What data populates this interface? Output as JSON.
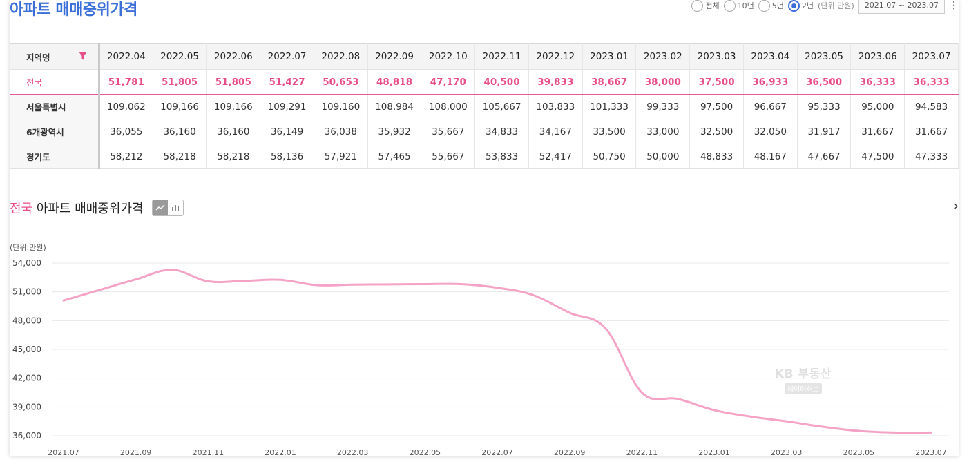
{
  "header": {
    "title": "아파트 매매중위가격",
    "radios": [
      {
        "label": "전체",
        "checked": false
      },
      {
        "label": "10년",
        "checked": false
      },
      {
        "label": "5년",
        "checked": false
      },
      {
        "label": "2년",
        "checked": true
      }
    ],
    "unit_note": "(단위:만원)",
    "date_range": "2021.07 ~ 2023.07"
  },
  "table": {
    "region_header": "지역명",
    "months": [
      "2022.04",
      "2022.05",
      "2022.06",
      "2022.07",
      "2022.08",
      "2022.09",
      "2022.10",
      "2022.11",
      "2022.12",
      "2023.01",
      "2023.02",
      "2023.03",
      "2023.04",
      "2023.05",
      "2023.06",
      "2023.07"
    ],
    "rows": [
      {
        "region": "전국",
        "values": [
          "51,781",
          "51,805",
          "51,805",
          "51,427",
          "50,653",
          "48,818",
          "47,170",
          "40,500",
          "39,833",
          "38,667",
          "38,000",
          "37,500",
          "36,933",
          "36,500",
          "36,333",
          "36,333"
        ]
      },
      {
        "region": "서울특별시",
        "values": [
          "109,062",
          "109,166",
          "109,166",
          "109,291",
          "109,160",
          "108,984",
          "108,000",
          "105,667",
          "103,833",
          "101,333",
          "99,333",
          "97,500",
          "96,667",
          "95,333",
          "95,000",
          "94,583"
        ]
      },
      {
        "region": "6개광역시",
        "values": [
          "36,055",
          "36,160",
          "36,160",
          "36,149",
          "36,038",
          "35,932",
          "35,667",
          "34,833",
          "34,167",
          "33,500",
          "33,000",
          "32,500",
          "32,050",
          "31,917",
          "31,667",
          "31,667"
        ]
      },
      {
        "region": "경기도",
        "values": [
          "58,212",
          "58,218",
          "58,218",
          "58,136",
          "57,921",
          "57,465",
          "55,667",
          "53,833",
          "52,417",
          "50,750",
          "50,000",
          "48,833",
          "48,167",
          "47,667",
          "47,500",
          "47,333"
        ]
      }
    ]
  },
  "chart_section": {
    "title_accent": "전국",
    "title_rest": " 아파트 매매중위가격",
    "unit_label": "(단위:만원)",
    "watermark_main": "KB 부동산",
    "watermark_sub": "데이터허브",
    "line_color": "#f4a3c6"
  },
  "chart_data": {
    "type": "line",
    "title": "전국 아파트 매매중위가격",
    "ylabel": "(단위:만원)",
    "ylim": [
      36000,
      54000
    ],
    "yticks": [
      36000,
      39000,
      42000,
      45000,
      48000,
      51000,
      54000
    ],
    "xtick_labels": [
      "2021.07",
      "2021.09",
      "2021.11",
      "2022.01",
      "2022.03",
      "2022.05",
      "2022.07",
      "2022.09",
      "2022.11",
      "2023.01",
      "2023.03",
      "2023.05",
      "2023.07"
    ],
    "series": [
      {
        "name": "전국",
        "x": [
          "2021.07",
          "2021.08",
          "2021.09",
          "2021.10",
          "2021.11",
          "2021.12",
          "2022.01",
          "2022.02",
          "2022.03",
          "2022.04",
          "2022.05",
          "2022.06",
          "2022.07",
          "2022.08",
          "2022.09",
          "2022.10",
          "2022.11",
          "2022.12",
          "2023.01",
          "2023.02",
          "2023.03",
          "2023.04",
          "2023.05",
          "2023.06",
          "2023.07"
        ],
        "values": [
          50100,
          51200,
          52300,
          53300,
          52100,
          52150,
          52250,
          51700,
          51750,
          51781,
          51805,
          51805,
          51427,
          50653,
          48818,
          47170,
          40500,
          39833,
          38667,
          38000,
          37500,
          36933,
          36500,
          36333,
          36333
        ]
      }
    ]
  }
}
